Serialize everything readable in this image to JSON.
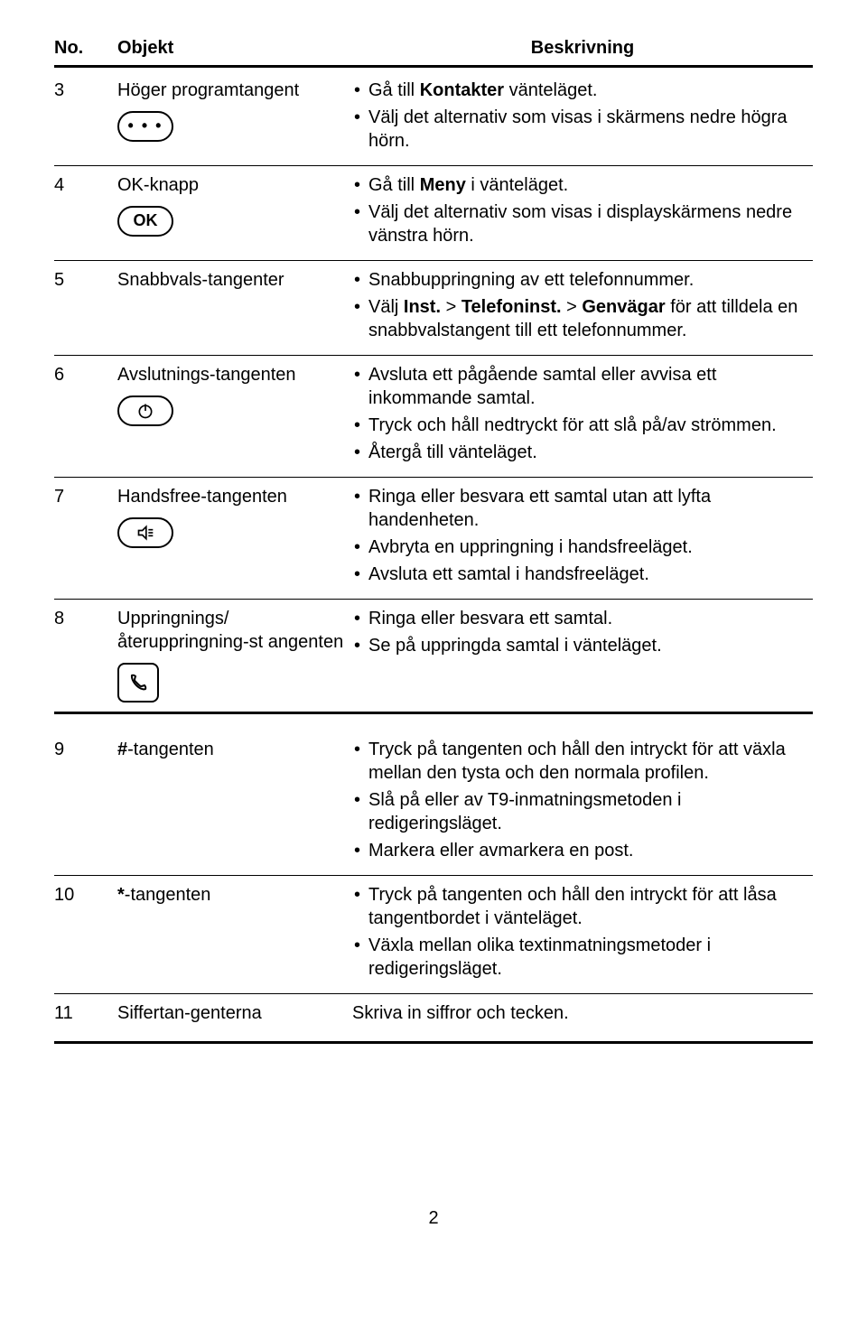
{
  "header": {
    "no": "No.",
    "objekt": "Objekt",
    "beskrivning": "Beskrivning"
  },
  "rows": [
    {
      "no": "3",
      "objekt": "Höger programtangent",
      "icon": "dots-icon",
      "desc": [
        [
          {
            "t": "Gå till "
          },
          {
            "t": "Kontakter",
            "b": true
          },
          {
            "t": " vänteläget."
          }
        ],
        [
          {
            "t": "Välj det alternativ som visas i skärmens nedre högra hörn."
          }
        ]
      ]
    },
    {
      "no": "4",
      "objekt": "OK-knapp",
      "icon": "ok-icon",
      "desc": [
        [
          {
            "t": "Gå till "
          },
          {
            "t": "Meny",
            "b": true
          },
          {
            "t": " i vänteläget."
          }
        ],
        [
          {
            "t": "Välj det alternativ som visas i displayskärmens nedre vänstra hörn."
          }
        ]
      ]
    },
    {
      "no": "5",
      "objekt": "Snabbvals-tangenter",
      "icon": "",
      "desc": [
        [
          {
            "t": "Snabbuppringning av ett telefonnummer."
          }
        ],
        [
          {
            "t": "Välj "
          },
          {
            "t": "Inst.",
            "b": true
          },
          {
            "t": " > "
          },
          {
            "t": "Telefoninst.",
            "b": true
          },
          {
            "t": " > "
          },
          {
            "t": "Genvägar",
            "b": true
          },
          {
            "t": " för att tilldela en snabbvalstangent till ett telefonnummer."
          }
        ]
      ]
    },
    {
      "no": "6",
      "objekt": "Avslutnings-tangenten",
      "icon": "power-icon",
      "desc": [
        [
          {
            "t": "Avsluta ett pågående samtal eller avvisa ett inkommande samtal."
          }
        ],
        [
          {
            "t": "Tryck och håll nedtryckt för att slå på/av strömmen."
          }
        ],
        [
          {
            "t": "Återgå till vänteläget."
          }
        ]
      ]
    },
    {
      "no": "7",
      "objekt": "Handsfree-tangenten",
      "icon": "speaker-icon",
      "desc": [
        [
          {
            "t": "Ringa eller besvara ett samtal utan att lyfta handenheten."
          }
        ],
        [
          {
            "t": "Avbryta en uppringning i handsfreeläget."
          }
        ],
        [
          {
            "t": "Avsluta ett samtal i handsfreeläget."
          }
        ]
      ]
    },
    {
      "no": "8",
      "objekt": "Uppringnings/återuppringning-st angenten",
      "icon": "call-icon",
      "desc": [
        [
          {
            "t": "Ringa eller besvara ett samtal."
          }
        ],
        [
          {
            "t": "Se på uppringda samtal i vänteläget."
          }
        ]
      ],
      "thick": true
    }
  ],
  "rows2": [
    {
      "no": "9",
      "objekt": "#-tangenten",
      "objekt_prefix_bold": "#",
      "objekt_suffix": "-tangenten",
      "icon": "",
      "desc": [
        [
          {
            "t": "Tryck på tangenten och håll den intryckt för att växla mellan den tysta och den normala profilen."
          }
        ],
        [
          {
            "t": "Slå på eller av T9-inmatningsmetoden i redigeringsläget."
          }
        ],
        [
          {
            "t": "Markera eller avmarkera en post."
          }
        ]
      ]
    },
    {
      "no": "10",
      "objekt": "*-tangenten",
      "objekt_prefix_bold": "*",
      "objekt_suffix": "-tangenten",
      "icon": "",
      "desc": [
        [
          {
            "t": "Tryck på tangenten och håll den intryckt för att låsa tangentbordet i vänteläget."
          }
        ],
        [
          {
            "t": "Växla mellan olika textinmatningsmetoder i redigeringsläget."
          }
        ]
      ]
    },
    {
      "no": "11",
      "objekt": "Siffertan-genterna",
      "icon": "",
      "desc_plain": "Skriva in siffror och tecken.",
      "thick": true
    }
  ],
  "pageNumber": "2",
  "icons": {
    "ok_text": "OK"
  }
}
